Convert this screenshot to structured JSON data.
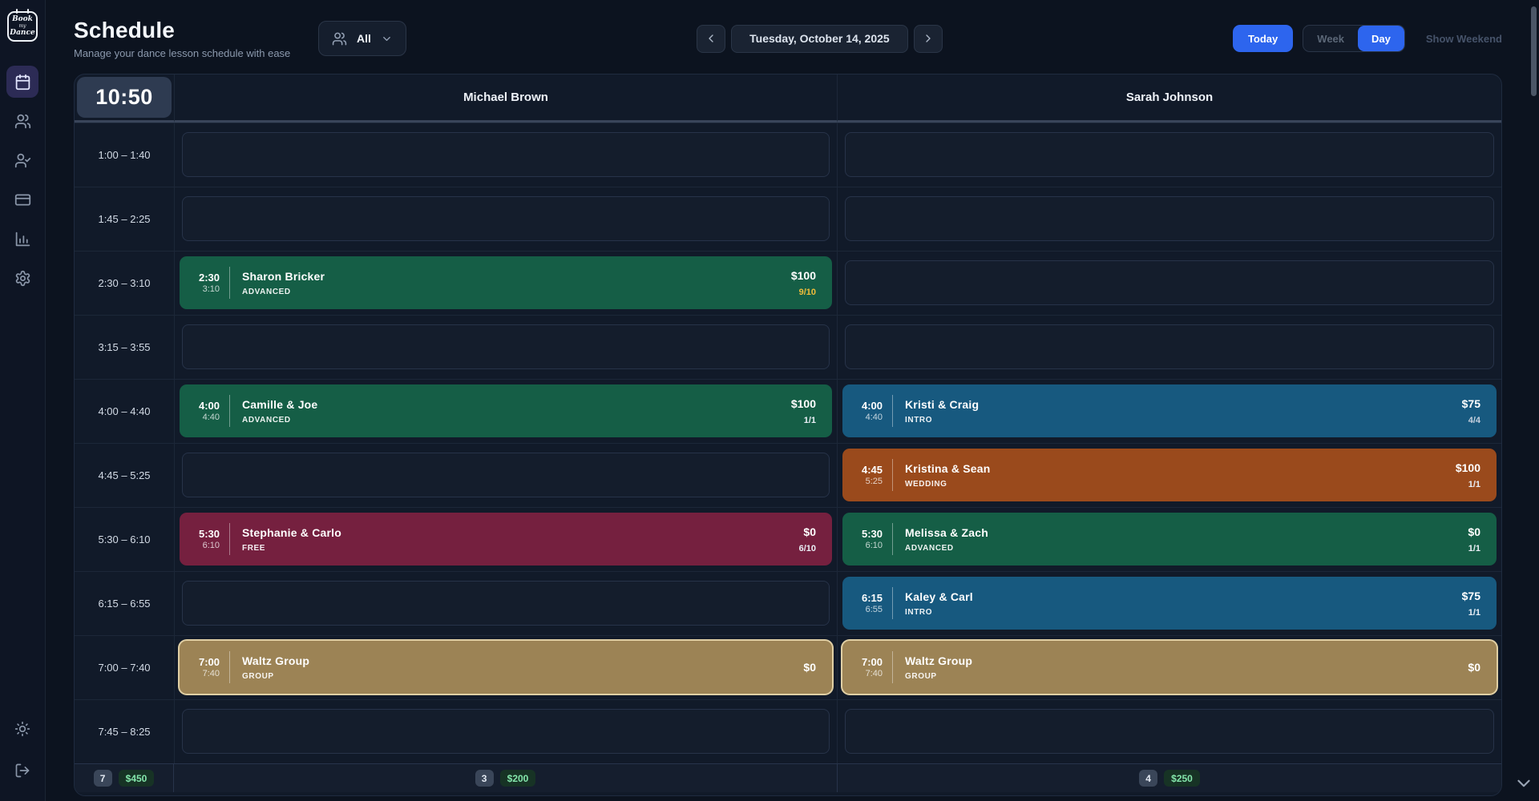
{
  "app": {
    "logo": {
      "line1": "Book",
      "line2": "my",
      "line3": "Dance"
    }
  },
  "sidebar": {
    "items": [
      {
        "id": "schedule",
        "icon": "calendar-icon",
        "active": true
      },
      {
        "id": "clients",
        "icon": "users-icon",
        "active": false
      },
      {
        "id": "instructors",
        "icon": "user-check-icon",
        "active": false
      },
      {
        "id": "payments",
        "icon": "credit-card-icon",
        "active": false
      },
      {
        "id": "reports",
        "icon": "bar-chart-icon",
        "active": false
      },
      {
        "id": "settings",
        "icon": "gear-icon",
        "active": false
      }
    ],
    "footer_items": [
      {
        "id": "theme-toggle",
        "icon": "sun-icon"
      },
      {
        "id": "logout",
        "icon": "logout-icon"
      }
    ]
  },
  "header": {
    "title": "Schedule",
    "subtitle": "Manage your dance lesson schedule with ease",
    "filter": {
      "value": "All",
      "icon": "users-icon"
    },
    "date_nav": {
      "current_date": "Tuesday, October 14, 2025"
    },
    "view_controls": {
      "today_label": "Today",
      "week_label": "Week",
      "day_label": "Day",
      "active_view": "Day",
      "show_weekend_label": "Show Weekend"
    }
  },
  "schedule": {
    "current_time": "10:50",
    "columns": [
      {
        "name": "Michael Brown"
      },
      {
        "name": "Sarah Johnson"
      }
    ],
    "time_slots": [
      "1:00 – 1:40",
      "1:45 – 2:25",
      "2:30 – 3:10",
      "3:15 – 3:55",
      "4:00 – 4:40",
      "4:45 – 5:25",
      "5:30 – 6:10",
      "6:15 – 6:55",
      "7:00 – 7:40",
      "7:45 – 8:25"
    ],
    "events": [
      {
        "col": 0,
        "row": 2,
        "start": "2:30",
        "end": "3:10",
        "title": "Sharon Bricker",
        "category": "ADVANCED",
        "price": "$100",
        "capacity": "9/10",
        "type": "advanced",
        "capacity_color": "#f0bd3a",
        "highlight": false
      },
      {
        "col": 0,
        "row": 4,
        "start": "4:00",
        "end": "4:40",
        "title": "Camille & Joe",
        "category": "ADVANCED",
        "price": "$100",
        "capacity": "1/1",
        "type": "advanced",
        "capacity_color": "#eaeff6",
        "highlight": false
      },
      {
        "col": 0,
        "row": 6,
        "start": "5:30",
        "end": "6:10",
        "title": "Stephanie & Carlo",
        "category": "FREE",
        "price": "$0",
        "capacity": "6/10",
        "type": "free",
        "capacity_color": "#eaeff6",
        "highlight": false
      },
      {
        "col": 0,
        "row": 8,
        "start": "7:00",
        "end": "7:40",
        "title": "Waltz Group",
        "category": "GROUP",
        "price": "$0",
        "capacity": "",
        "type": "group",
        "capacity_color": "",
        "highlight": true
      },
      {
        "col": 1,
        "row": 4,
        "start": "4:00",
        "end": "4:40",
        "title": "Kristi & Craig",
        "category": "INTRO",
        "price": "$75",
        "capacity": "4/4",
        "type": "intro",
        "capacity_color": "#c6d0de",
        "highlight": false
      },
      {
        "col": 1,
        "row": 5,
        "start": "4:45",
        "end": "5:25",
        "title": "Kristina & Sean",
        "category": "WEDDING",
        "price": "$100",
        "capacity": "1/1",
        "type": "wedding",
        "capacity_color": "#eaeff6",
        "highlight": false
      },
      {
        "col": 1,
        "row": 6,
        "start": "5:30",
        "end": "6:10",
        "title": "Melissa & Zach",
        "category": "ADVANCED",
        "price": "$0",
        "capacity": "1/1",
        "type": "advanced",
        "capacity_color": "#eaeff6",
        "highlight": false
      },
      {
        "col": 1,
        "row": 7,
        "start": "6:15",
        "end": "6:55",
        "title": "Kaley & Carl",
        "category": "INTRO",
        "price": "$75",
        "capacity": "1/1",
        "type": "intro",
        "capacity_color": "#eaeff6",
        "highlight": false
      },
      {
        "col": 1,
        "row": 8,
        "start": "7:00",
        "end": "7:40",
        "title": "Waltz Group",
        "category": "GROUP",
        "price": "$0",
        "capacity": "",
        "type": "group",
        "capacity_color": "",
        "highlight": true
      }
    ],
    "footer": {
      "total": {
        "count": "7",
        "amount": "$450"
      },
      "columns": [
        {
          "count": "3",
          "amount": "$200"
        },
        {
          "count": "4",
          "amount": "$250"
        }
      ]
    }
  },
  "colors": {
    "advanced": "#155e46",
    "intro": "#17597f",
    "wedding": "#9a4a1c",
    "free": "#75203f",
    "group": "#9c8355",
    "accent": "#2d65ee",
    "highlight_ring": "#e0cfa4"
  }
}
